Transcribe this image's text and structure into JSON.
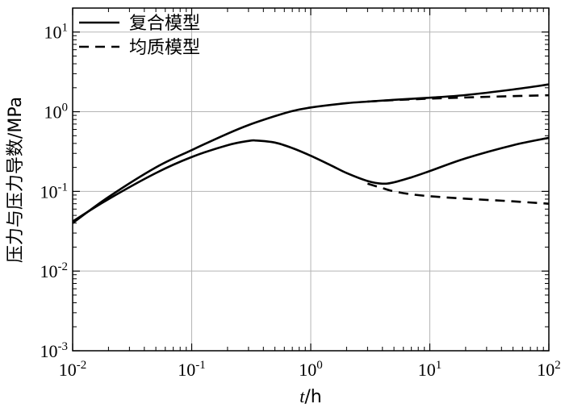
{
  "chart_data": {
    "type": "line",
    "xlabel_var": "t",
    "xlabel_unit": "/h",
    "ylabel": "压力与压力导数/MPa",
    "x_scale": "log",
    "y_scale": "log",
    "xlim": [
      0.01,
      100
    ],
    "ylim": [
      0.001,
      20
    ],
    "grid": true,
    "legend_position": "top-left",
    "x_ticks": [
      {
        "base": "10",
        "exp": "-2"
      },
      {
        "base": "10",
        "exp": "-1"
      },
      {
        "base": "10",
        "exp": "0"
      },
      {
        "base": "10",
        "exp": "1"
      },
      {
        "base": "10",
        "exp": "2"
      }
    ],
    "y_ticks": [
      {
        "base": "10",
        "exp": "-3"
      },
      {
        "base": "10",
        "exp": "-2"
      },
      {
        "base": "10",
        "exp": "-1"
      },
      {
        "base": "10",
        "exp": "0"
      },
      {
        "base": "10",
        "exp": "1"
      }
    ],
    "legend": [
      {
        "label": "复合模型",
        "style": "solid"
      },
      {
        "label": "均质模型",
        "style": "dashed"
      }
    ],
    "series": [
      {
        "name": "复合模型",
        "style": "solid",
        "kind": "pressure",
        "x": [
          0.01,
          0.02,
          0.05,
          0.1,
          0.2,
          0.3,
          0.5,
          0.7,
          1,
          2,
          3,
          5,
          10,
          20,
          50,
          100
        ],
        "y": [
          0.04,
          0.085,
          0.2,
          0.33,
          0.53,
          0.68,
          0.88,
          1.02,
          1.13,
          1.28,
          1.34,
          1.41,
          1.5,
          1.62,
          1.9,
          2.2
        ]
      },
      {
        "name": "复合模型",
        "style": "solid",
        "kind": "derivative",
        "x": [
          0.01,
          0.02,
          0.05,
          0.1,
          0.2,
          0.3,
          0.35,
          0.5,
          0.7,
          1,
          1.5,
          2,
          3,
          4,
          5,
          7,
          10,
          20,
          50,
          100
        ],
        "y": [
          0.042,
          0.08,
          0.17,
          0.27,
          0.38,
          0.43,
          0.435,
          0.41,
          0.35,
          0.28,
          0.21,
          0.17,
          0.135,
          0.125,
          0.13,
          0.15,
          0.18,
          0.26,
          0.38,
          0.47
        ]
      },
      {
        "name": "均质模型",
        "style": "dashed",
        "kind": "pressure",
        "x": [
          3,
          5,
          10,
          20,
          50,
          100
        ],
        "y": [
          1.34,
          1.4,
          1.46,
          1.51,
          1.57,
          1.61
        ]
      },
      {
        "name": "均质模型",
        "style": "dashed",
        "kind": "derivative",
        "x": [
          3,
          4,
          5,
          7,
          10,
          20,
          50,
          100
        ],
        "y": [
          0.125,
          0.11,
          0.1,
          0.092,
          0.087,
          0.081,
          0.075,
          0.07
        ]
      }
    ]
  }
}
